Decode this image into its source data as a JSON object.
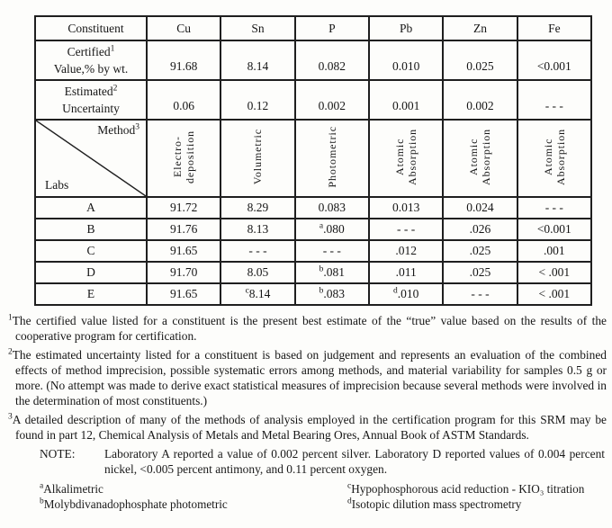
{
  "table": {
    "header": {
      "constituent_label": "Constituent",
      "columns": [
        "Cu",
        "Sn",
        "P",
        "Pb",
        "Zn",
        "Fe"
      ]
    },
    "certified_row": {
      "label_line1": "Certified",
      "label_sup": "1",
      "label_line2": "Value,% by wt.",
      "values": [
        "91.68",
        "8.14",
        "0.082",
        "0.010",
        "0.025",
        "<0.001"
      ]
    },
    "estimated_row": {
      "label_line1": "Estimated",
      "label_sup": "2",
      "label_line2": "Uncertainty",
      "values": [
        "0.06",
        "0.12",
        "0.002",
        "0.001",
        "0.002",
        "- - -"
      ]
    },
    "method_row": {
      "method_label": "Method",
      "method_sup": "3",
      "labs_label": "Labs",
      "methods": [
        {
          "lines": [
            "Electro-",
            "deposition"
          ]
        },
        {
          "lines": [
            "Volumetric"
          ]
        },
        {
          "lines": [
            "Photometric"
          ]
        },
        {
          "lines": [
            "Atomic",
            "Absorption"
          ]
        },
        {
          "lines": [
            "Atomic",
            "Absorption"
          ]
        },
        {
          "lines": [
            "Atomic",
            "Absorption"
          ]
        }
      ]
    },
    "lab_rows": [
      {
        "lab": "A",
        "values": [
          {
            "v": "91.72"
          },
          {
            "v": "8.29"
          },
          {
            "v": "0.083"
          },
          {
            "v": "0.013"
          },
          {
            "v": "0.024"
          },
          {
            "v": "- - -"
          }
        ]
      },
      {
        "lab": "B",
        "values": [
          {
            "v": "91.76"
          },
          {
            "v": "8.13"
          },
          {
            "sup": "a",
            "v": ".080"
          },
          {
            "v": "- - -"
          },
          {
            "v": ".026"
          },
          {
            "v": "<0.001"
          }
        ]
      },
      {
        "lab": "C",
        "values": [
          {
            "v": "91.65"
          },
          {
            "v": "- - -"
          },
          {
            "v": "- - -"
          },
          {
            "v": ".012"
          },
          {
            "v": ".025"
          },
          {
            "v": ".001"
          }
        ]
      },
      {
        "lab": "D",
        "values": [
          {
            "v": "91.70"
          },
          {
            "v": "8.05"
          },
          {
            "sup": "b",
            "v": ".081"
          },
          {
            "v": ".011"
          },
          {
            "v": ".025"
          },
          {
            "v": "< .001"
          }
        ]
      },
      {
        "lab": "E",
        "values": [
          {
            "v": "91.65"
          },
          {
            "sup": "c",
            "v": "8.14"
          },
          {
            "sup": "b",
            "v": ".083"
          },
          {
            "sup": "d",
            "v": ".010"
          },
          {
            "v": "- - -"
          },
          {
            "v": "< .001"
          }
        ]
      }
    ]
  },
  "footnotes": [
    {
      "sup": "1",
      "text": "The certified value listed for a constituent is the present best estimate of the “true” value based on the results of the cooperative program for certification."
    },
    {
      "sup": "2",
      "text": "The estimated uncertainty listed for a constituent is based on judgement and represents an evaluation of the combined effects of method imprecision, possible systematic errors among methods, and material variability for samples 0.5 g or more. (No attempt was made to derive exact statistical measures of imprecision because several methods were involved in the determination of most constituents.)"
    },
    {
      "sup": "3",
      "text": "A detailed description of many of the methods of analysis employed in the certification program for this SRM may be found in part 12, Chemical Analysis of Metals and Metal Bearing Ores, Annual Book of ASTM Standards."
    }
  ],
  "note": {
    "label": "NOTE:",
    "text": "Laboratory A reported a value of 0.002 percent silver.  Laboratory D reported values of 0.004 percent nickel, <0.005 percent antimony, and 0.11 percent oxygen."
  },
  "method_footnotes": {
    "left": [
      {
        "sup": "a",
        "text": "Alkalimetric"
      },
      {
        "sup": "b",
        "text": "Molybdivanadophosphate photometric"
      }
    ],
    "right": [
      {
        "sup": "c",
        "text": "Hypophosphorous acid reduction - KIO₃ titration"
      },
      {
        "sup": "d",
        "text": "Isotopic dilution mass spectrometry"
      }
    ]
  }
}
